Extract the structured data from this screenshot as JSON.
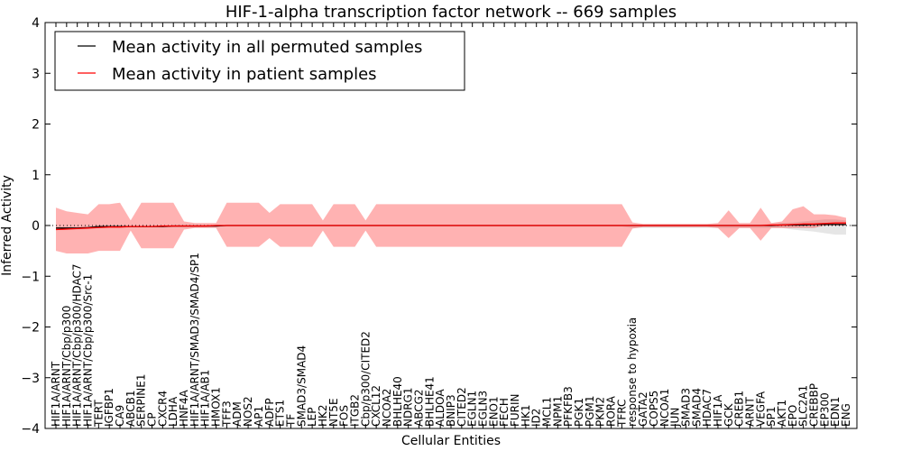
{
  "chart_data": {
    "type": "line",
    "title": "HIF-1-alpha transcription factor network -- 669 samples",
    "xlabel": "Cellular Entities",
    "ylabel": "Inferred Activity",
    "ylim": [
      -4,
      4
    ],
    "yticks": [
      -4,
      -3,
      -2,
      -1,
      0,
      1,
      2,
      3,
      4
    ],
    "ytick_labels": [
      "−4",
      "−3",
      "−2",
      "−1",
      "0",
      "1",
      "2",
      "3",
      "4"
    ],
    "legend_position": "top-left",
    "categories": [
      "HIF1A/ARNT",
      "HIF1A/ARNT/Cbp/p300",
      "HIF1A/ARNT/Cbp/p300/HDAC7",
      "HIF1A/ARNT/Cbp/p300/Src-1",
      "TERT",
      "IGFBP1",
      "CA9",
      "ABCB1",
      "SERPINE1",
      "CP",
      "CXCR4",
      "LDHA",
      "HNF4A",
      "HIF1A/ARNT/SMAD3/SMAD4/SP1",
      "HIF1A/AB1",
      "HMOX1",
      "TFF3",
      "ADM",
      "NOS2",
      "AP1",
      "ADFP",
      "ETS1",
      "TF",
      "SMAD3/SMAD4",
      "LEP",
      "HK2",
      "NT5E",
      "FOS",
      "ITGB2",
      "Cbp/p300/CITED2",
      "CXCL12",
      "NCOA2",
      "BHLHE40",
      "NDRG1",
      "ABCG2",
      "BHLHE41",
      "ALDOA",
      "BNIP3",
      "CITED2",
      "EGLN1",
      "EGLN3",
      "ENO1",
      "FECH",
      "FURIN",
      "HK1",
      "ID2",
      "MCL1",
      "NPM1",
      "PFKFB3",
      "PGK1",
      "PGM1",
      "PKM2",
      "RORA",
      "TFRC",
      "response to hypoxia",
      "GATA2",
      "COPS5",
      "NCOA1",
      "JUN",
      "SMAD3",
      "SMAD4",
      "HDAC7",
      "HIF1A",
      "GCK",
      "CREB1",
      "ARNT",
      "VEGFA",
      "SP1",
      "AKT1",
      "EPO",
      "SLC2A1",
      "CREBBP",
      "EP300",
      "EDN1",
      "ENG"
    ],
    "series": [
      {
        "name": "Mean activity in all permuted samples",
        "color": "#000000",
        "values": [
          -0.05,
          -0.05,
          -0.05,
          -0.04,
          -0.02,
          -0.02,
          -0.02,
          -0.02,
          -0.02,
          -0.02,
          -0.02,
          -0.01,
          -0.01,
          -0.01,
          -0.01,
          -0.01,
          0,
          0,
          0,
          0,
          0,
          0,
          0,
          0,
          0,
          0,
          0,
          0,
          0,
          0,
          0,
          0,
          0,
          0,
          0,
          0,
          0,
          0,
          0,
          0,
          0,
          0,
          0,
          0,
          0,
          0,
          0,
          0,
          0,
          0,
          0,
          0,
          0,
          0,
          0,
          0,
          0,
          0,
          0,
          0,
          0,
          0,
          0,
          0,
          0,
          0,
          0,
          0,
          0.01,
          0.01,
          0.01,
          0.02,
          0.02,
          0.02,
          0.02
        ],
        "band": [
          [
            -0.08,
            -0.06
          ],
          [
            -0.08,
            -0.06
          ],
          [
            -0.08,
            -0.05
          ],
          [
            -0.07,
            -0.05
          ],
          [
            -0.05,
            -0.03
          ],
          [
            -0.05,
            -0.03
          ],
          [
            -0.05,
            -0.03
          ],
          [
            -0.04,
            -0.02
          ],
          [
            -0.04,
            -0.02
          ],
          [
            -0.04,
            -0.02
          ],
          [
            -0.04,
            -0.02
          ],
          [
            -0.03,
            -0.01
          ],
          [
            -0.03,
            -0.01
          ],
          [
            -0.03,
            -0.01
          ],
          [
            -0.03,
            -0.01
          ],
          [
            -0.02,
            0
          ],
          [
            -0.02,
            0
          ],
          [
            -0.02,
            0
          ],
          [
            -0.02,
            0
          ],
          [
            -0.02,
            0
          ],
          [
            -0.02,
            0
          ],
          [
            -0.02,
            0
          ],
          [
            -0.02,
            0
          ],
          [
            -0.02,
            0
          ],
          [
            -0.02,
            0
          ],
          [
            -0.02,
            0
          ],
          [
            -0.02,
            0
          ],
          [
            -0.02,
            0
          ],
          [
            -0.02,
            0
          ],
          [
            -0.02,
            0
          ],
          [
            -0.02,
            0
          ],
          [
            -0.02,
            0
          ],
          [
            -0.02,
            0
          ],
          [
            -0.02,
            0
          ],
          [
            -0.02,
            0
          ],
          [
            -0.02,
            0
          ],
          [
            -0.02,
            0
          ],
          [
            -0.02,
            0
          ],
          [
            -0.02,
            0
          ],
          [
            -0.02,
            0
          ],
          [
            -0.02,
            0
          ],
          [
            -0.02,
            0
          ],
          [
            -0.02,
            0
          ],
          [
            -0.02,
            0
          ],
          [
            -0.02,
            0
          ],
          [
            -0.02,
            0
          ],
          [
            -0.02,
            0
          ],
          [
            -0.02,
            0
          ],
          [
            -0.02,
            0
          ],
          [
            -0.02,
            0
          ],
          [
            -0.02,
            0
          ],
          [
            -0.02,
            0
          ],
          [
            -0.02,
            0
          ],
          [
            -0.02,
            0
          ],
          [
            -0.05,
            0.02
          ],
          [
            -0.05,
            0.02
          ],
          [
            -0.05,
            0.02
          ],
          [
            -0.05,
            0.02
          ],
          [
            -0.05,
            0.02
          ],
          [
            -0.05,
            0.02
          ],
          [
            -0.05,
            0.02
          ],
          [
            -0.05,
            0.02
          ],
          [
            -0.05,
            0.02
          ],
          [
            -0.05,
            0.02
          ],
          [
            -0.05,
            0.02
          ],
          [
            -0.05,
            0.02
          ],
          [
            -0.05,
            0.02
          ],
          [
            -0.05,
            0.03
          ],
          [
            -0.05,
            0.05
          ],
          [
            -0.08,
            0.06
          ],
          [
            -0.1,
            0.08
          ],
          [
            -0.12,
            0.1
          ],
          [
            -0.15,
            0.12
          ],
          [
            -0.18,
            0.12
          ],
          [
            -0.18,
            0.1
          ]
        ]
      },
      {
        "name": "Mean activity in patient samples",
        "color": "#ff0000",
        "values": [
          -0.08,
          -0.07,
          -0.06,
          -0.05,
          -0.04,
          -0.03,
          -0.03,
          -0.02,
          -0.02,
          -0.02,
          -0.01,
          -0.01,
          -0.01,
          -0.01,
          -0.01,
          0,
          0,
          0,
          0,
          0,
          0,
          0,
          0,
          0,
          0,
          0,
          0,
          0,
          0,
          0,
          0,
          0,
          0,
          0,
          0,
          0,
          0,
          0,
          0,
          0,
          0,
          0,
          0,
          0,
          0,
          0,
          0,
          0,
          0,
          0,
          0,
          0,
          0,
          0,
          0,
          0,
          0,
          0,
          0,
          0,
          0,
          0,
          0,
          0,
          0,
          0,
          0,
          0.01,
          0.01,
          0.02,
          0.03,
          0.03,
          0.04,
          0.05,
          0.05
        ],
        "band": [
          [
            -0.5,
            0.35
          ],
          [
            -0.55,
            0.28
          ],
          [
            -0.55,
            0.25
          ],
          [
            -0.55,
            0.22
          ],
          [
            -0.5,
            0.42
          ],
          [
            -0.5,
            0.42
          ],
          [
            -0.5,
            0.45
          ],
          [
            -0.1,
            0.1
          ],
          [
            -0.45,
            0.45
          ],
          [
            -0.45,
            0.45
          ],
          [
            -0.45,
            0.45
          ],
          [
            -0.45,
            0.45
          ],
          [
            -0.08,
            0.08
          ],
          [
            -0.05,
            0.05
          ],
          [
            -0.05,
            0.05
          ],
          [
            -0.05,
            0.05
          ],
          [
            -0.42,
            0.45
          ],
          [
            -0.42,
            0.45
          ],
          [
            -0.42,
            0.45
          ],
          [
            -0.42,
            0.45
          ],
          [
            -0.25,
            0.25
          ],
          [
            -0.42,
            0.42
          ],
          [
            -0.42,
            0.42
          ],
          [
            -0.42,
            0.42
          ],
          [
            -0.42,
            0.42
          ],
          [
            -0.1,
            0.1
          ],
          [
            -0.42,
            0.42
          ],
          [
            -0.42,
            0.42
          ],
          [
            -0.42,
            0.42
          ],
          [
            -0.1,
            0.1
          ],
          [
            -0.42,
            0.42
          ],
          [
            -0.42,
            0.42
          ],
          [
            -0.42,
            0.42
          ],
          [
            -0.42,
            0.42
          ],
          [
            -0.42,
            0.42
          ],
          [
            -0.42,
            0.42
          ],
          [
            -0.42,
            0.42
          ],
          [
            -0.42,
            0.42
          ],
          [
            -0.42,
            0.42
          ],
          [
            -0.42,
            0.42
          ],
          [
            -0.42,
            0.42
          ],
          [
            -0.42,
            0.42
          ],
          [
            -0.42,
            0.42
          ],
          [
            -0.42,
            0.42
          ],
          [
            -0.42,
            0.42
          ],
          [
            -0.42,
            0.42
          ],
          [
            -0.42,
            0.42
          ],
          [
            -0.42,
            0.42
          ],
          [
            -0.42,
            0.42
          ],
          [
            -0.42,
            0.42
          ],
          [
            -0.42,
            0.42
          ],
          [
            -0.42,
            0.42
          ],
          [
            -0.42,
            0.42
          ],
          [
            -0.42,
            0.42
          ],
          [
            -0.06,
            0.06
          ],
          [
            -0.03,
            0.03
          ],
          [
            -0.03,
            0.03
          ],
          [
            -0.03,
            0.03
          ],
          [
            -0.03,
            0.03
          ],
          [
            -0.03,
            0.03
          ],
          [
            -0.03,
            0.03
          ],
          [
            -0.03,
            0.03
          ],
          [
            -0.05,
            0.05
          ],
          [
            -0.25,
            0.3
          ],
          [
            -0.05,
            0.05
          ],
          [
            -0.05,
            0.05
          ],
          [
            -0.3,
            0.35
          ],
          [
            -0.05,
            0.05
          ],
          [
            -0.05,
            0.08
          ],
          [
            -0.05,
            0.32
          ],
          [
            -0.05,
            0.38
          ],
          [
            -0.05,
            0.22
          ],
          [
            0,
            0.22
          ],
          [
            0,
            0.2
          ],
          [
            0,
            0.15
          ]
        ]
      }
    ]
  }
}
